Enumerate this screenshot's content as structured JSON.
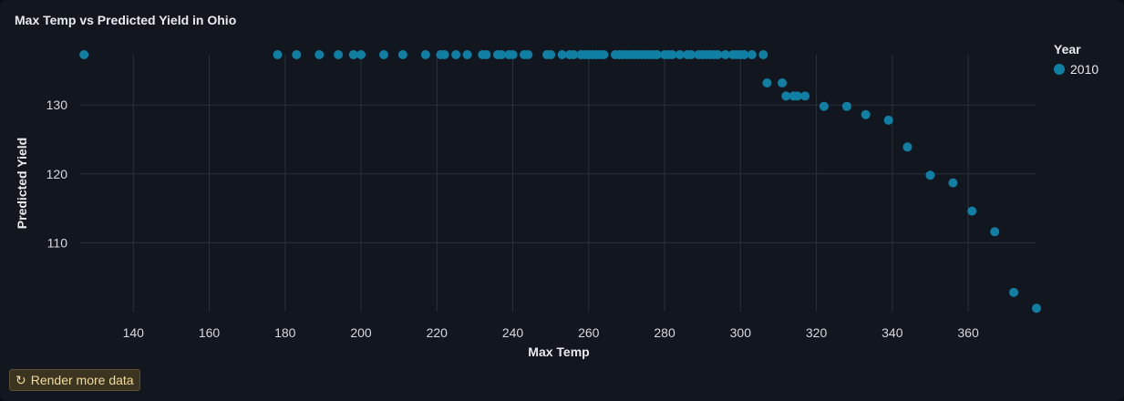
{
  "chart_data": {
    "type": "scatter",
    "title": "Max Temp vs Predicted Yield in Ohio",
    "xlabel": "Max Temp",
    "ylabel": "Predicted Yield",
    "xlim": [
      126,
      378
    ],
    "ylim": [
      100,
      137.3
    ],
    "xticks": [
      140,
      160,
      180,
      200,
      220,
      240,
      260,
      280,
      300,
      320,
      340,
      360
    ],
    "yticks": [
      110,
      120,
      130
    ],
    "grid": true,
    "legend": {
      "title": "Year",
      "placement": "right"
    },
    "series": [
      {
        "name": "2010",
        "color": "#0f7fa3",
        "points": [
          [
            127,
            137.3
          ],
          [
            178,
            137.3
          ],
          [
            183,
            137.3
          ],
          [
            189,
            137.3
          ],
          [
            194,
            137.3
          ],
          [
            198,
            137.3
          ],
          [
            200,
            137.3
          ],
          [
            206,
            137.3
          ],
          [
            211,
            137.3
          ],
          [
            217,
            137.3
          ],
          [
            221,
            137.3
          ],
          [
            222,
            137.3
          ],
          [
            225,
            137.3
          ],
          [
            228,
            137.3
          ],
          [
            232,
            137.3
          ],
          [
            233,
            137.3
          ],
          [
            236,
            137.3
          ],
          [
            237,
            137.3
          ],
          [
            239,
            137.3
          ],
          [
            240,
            137.3
          ],
          [
            243,
            137.3
          ],
          [
            244,
            137.3
          ],
          [
            249,
            137.3
          ],
          [
            250,
            137.3
          ],
          [
            253,
            137.3
          ],
          [
            255,
            137.3
          ],
          [
            256,
            137.3
          ],
          [
            258,
            137.3
          ],
          [
            259,
            137.3
          ],
          [
            260,
            137.3
          ],
          [
            261,
            137.3
          ],
          [
            262,
            137.3
          ],
          [
            263,
            137.3
          ],
          [
            264,
            137.3
          ],
          [
            267,
            137.3
          ],
          [
            268,
            137.3
          ],
          [
            269,
            137.3
          ],
          [
            270,
            137.3
          ],
          [
            271,
            137.3
          ],
          [
            272,
            137.3
          ],
          [
            273,
            137.3
          ],
          [
            274,
            137.3
          ],
          [
            275,
            137.3
          ],
          [
            276,
            137.3
          ],
          [
            277,
            137.3
          ],
          [
            278,
            137.3
          ],
          [
            280,
            137.3
          ],
          [
            281,
            137.3
          ],
          [
            282,
            137.3
          ],
          [
            284,
            137.3
          ],
          [
            286,
            137.3
          ],
          [
            287,
            137.3
          ],
          [
            289,
            137.3
          ],
          [
            290,
            137.3
          ],
          [
            291,
            137.3
          ],
          [
            292,
            137.3
          ],
          [
            293,
            137.3
          ],
          [
            294,
            137.3
          ],
          [
            296,
            137.3
          ],
          [
            298,
            137.3
          ],
          [
            299,
            137.3
          ],
          [
            300,
            137.3
          ],
          [
            301,
            137.3
          ],
          [
            303,
            137.3
          ],
          [
            306,
            137.3
          ],
          [
            307,
            133.2
          ],
          [
            311,
            133.2
          ],
          [
            312,
            131.3
          ],
          [
            314,
            131.3
          ],
          [
            315,
            131.3
          ],
          [
            317,
            131.3
          ],
          [
            322,
            129.8
          ],
          [
            328,
            129.8
          ],
          [
            333,
            128.6
          ],
          [
            339,
            127.8
          ],
          [
            344,
            123.9
          ],
          [
            350,
            119.8
          ],
          [
            356,
            118.7
          ],
          [
            361,
            114.6
          ],
          [
            367,
            111.6
          ],
          [
            372,
            102.8
          ],
          [
            378,
            100.5
          ]
        ]
      }
    ]
  },
  "controls": {
    "render_more_label": "Render more data",
    "render_more_icon": "refresh-icon"
  }
}
